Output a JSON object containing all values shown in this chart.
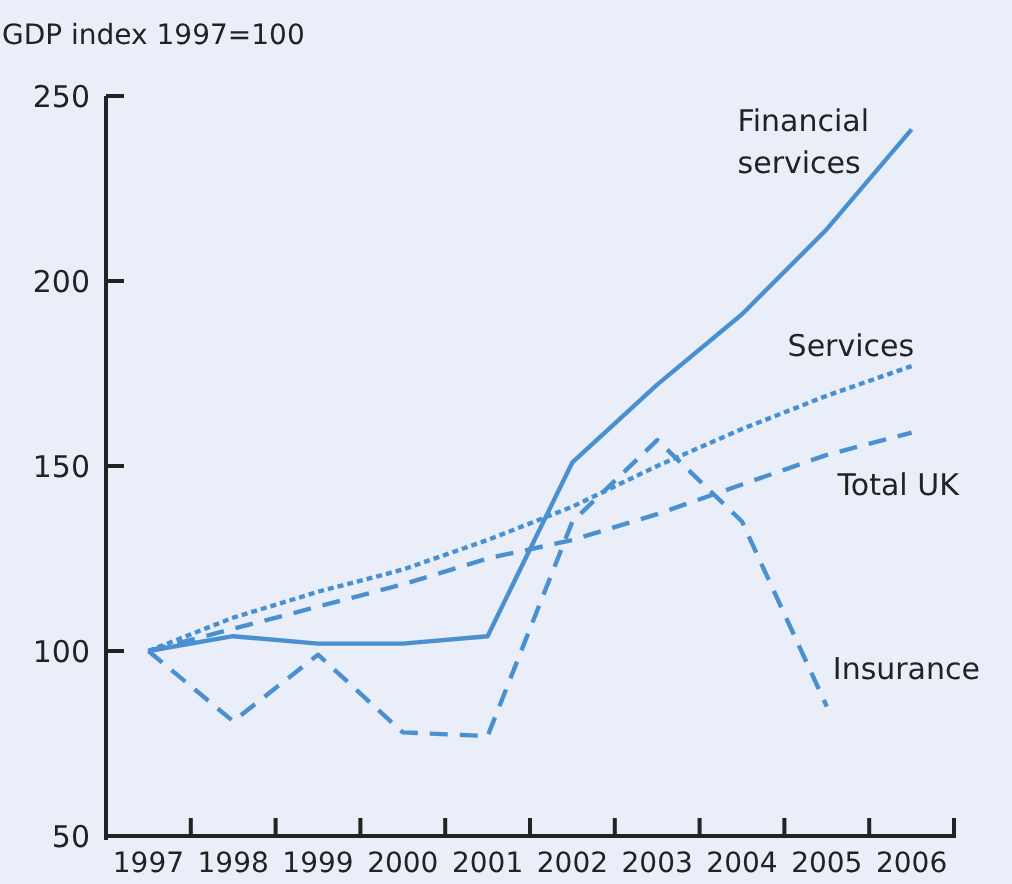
{
  "chart_data": {
    "type": "line",
    "ylabel": "GDP index 1997=100",
    "categories": [
      "1997",
      "1998",
      "1999",
      "2000",
      "2001",
      "2002",
      "2003",
      "2004",
      "2005",
      "2006"
    ],
    "ylim": [
      50,
      250
    ],
    "yticks": [
      50,
      100,
      150,
      200,
      250
    ],
    "legend": false,
    "grid": false,
    "series": [
      {
        "name": "Financial services",
        "color": "#4a90d0",
        "line_style": "solid",
        "values": [
          100,
          104,
          102,
          102,
          104,
          151,
          172,
          191,
          214,
          241
        ]
      },
      {
        "name": "Services",
        "color": "#4a90d0",
        "line_style": "dotted",
        "values": [
          100,
          109,
          116,
          122,
          130,
          139,
          150,
          160,
          169,
          177
        ]
      },
      {
        "name": "Total UK",
        "color": "#4a90d0",
        "line_style": "dashed",
        "values": [
          100,
          106,
          112,
          118,
          125,
          130,
          137,
          145,
          153,
          159
        ]
      },
      {
        "name": "Insurance",
        "color": "#4a90d0",
        "line_style": "dashed",
        "values": [
          100,
          81,
          99,
          78,
          77,
          135,
          157,
          135,
          85,
          null
        ]
      }
    ]
  }
}
